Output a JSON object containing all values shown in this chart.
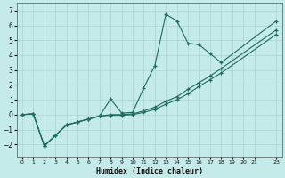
{
  "xlabel": "Humidex (Indice chaleur)",
  "xlim": [
    -0.5,
    23.5
  ],
  "ylim": [
    -2.8,
    7.5
  ],
  "yticks": [
    -2,
    -1,
    0,
    1,
    2,
    3,
    4,
    5,
    6,
    7
  ],
  "xticks": [
    0,
    1,
    2,
    3,
    4,
    5,
    6,
    7,
    8,
    9,
    10,
    11,
    12,
    13,
    14,
    15,
    16,
    17,
    18,
    19,
    20,
    21,
    23
  ],
  "bg_color": "#c5eaea",
  "grid_color": "#aad4d4",
  "line_color": "#1e6b5e",
  "line1": {
    "x": [
      0,
      1,
      2,
      3,
      4,
      5,
      6,
      7,
      8,
      9,
      10,
      11,
      12,
      13,
      14,
      15,
      16,
      17,
      18,
      23
    ],
    "y": [
      0.0,
      0.05,
      -2.1,
      -1.4,
      -0.7,
      -0.5,
      -0.3,
      -0.1,
      1.05,
      0.1,
      0.15,
      1.8,
      3.3,
      6.75,
      6.3,
      4.8,
      4.7,
      4.1,
      3.5,
      6.3
    ]
  },
  "line2": {
    "x": [
      0,
      1,
      2,
      3,
      4,
      5,
      6,
      7,
      8,
      9,
      10,
      11,
      12,
      13,
      14,
      15,
      16,
      17,
      18,
      23
    ],
    "y": [
      0.0,
      0.05,
      -2.1,
      -1.4,
      -0.7,
      -0.5,
      -0.3,
      -0.1,
      0.0,
      0.0,
      0.05,
      0.25,
      0.5,
      0.9,
      1.2,
      1.7,
      2.15,
      2.6,
      3.1,
      5.7
    ]
  },
  "line3": {
    "x": [
      0,
      1,
      2,
      3,
      4,
      5,
      6,
      7,
      8,
      9,
      10,
      11,
      12,
      13,
      14,
      15,
      16,
      17,
      18,
      23
    ],
    "y": [
      0.0,
      0.05,
      -2.1,
      -1.4,
      -0.7,
      -0.5,
      -0.3,
      -0.1,
      -0.05,
      -0.05,
      0.0,
      0.15,
      0.35,
      0.7,
      1.0,
      1.4,
      1.9,
      2.35,
      2.8,
      5.4
    ]
  }
}
